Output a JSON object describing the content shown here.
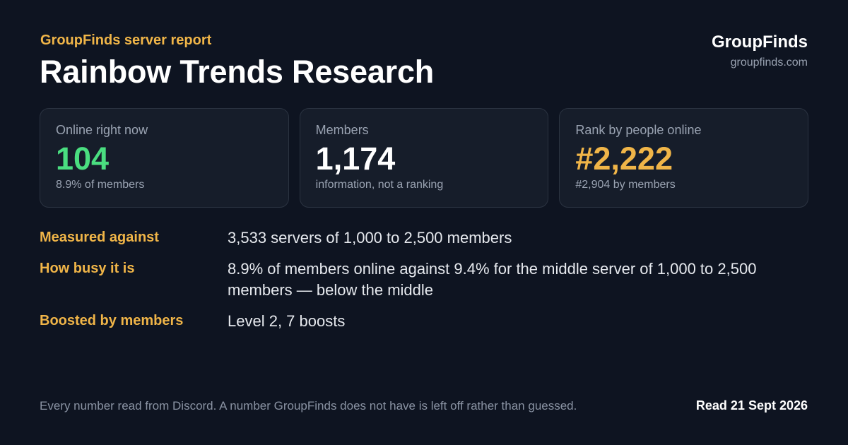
{
  "header": {
    "kicker": "GroupFinds server report",
    "title": "Rainbow Trends Research"
  },
  "brand": {
    "name": "GroupFinds",
    "url": "groupfinds.com"
  },
  "stats": [
    {
      "label": "Online right now",
      "value": "104",
      "sub": "8.9% of members",
      "color": "#4ade80"
    },
    {
      "label": "Members",
      "value": "1,174",
      "sub": "information, not a ranking",
      "color": "#ffffff"
    },
    {
      "label": "Rank by people online",
      "value": "#2,222",
      "sub": "#2,904 by members",
      "color": "#f0b548"
    }
  ],
  "details": [
    {
      "label": "Measured against",
      "value": "3,533 servers of 1,000 to 2,500 members"
    },
    {
      "label": "How busy it is",
      "value": "8.9% of members online against 9.4% for the middle server of 1,000 to 2,500 members — below the middle"
    },
    {
      "label": "Boosted by members",
      "value": "Level 2, 7 boosts"
    }
  ],
  "footer": {
    "note": "Every number read from Discord. A number GroupFinds does not have is left off rather than guessed.",
    "date": "Read 21 Sept 2026"
  },
  "colors": {
    "background": "#0e1421",
    "accent": "#f0b548",
    "positive": "#4ade80",
    "card": "#161d2a"
  }
}
